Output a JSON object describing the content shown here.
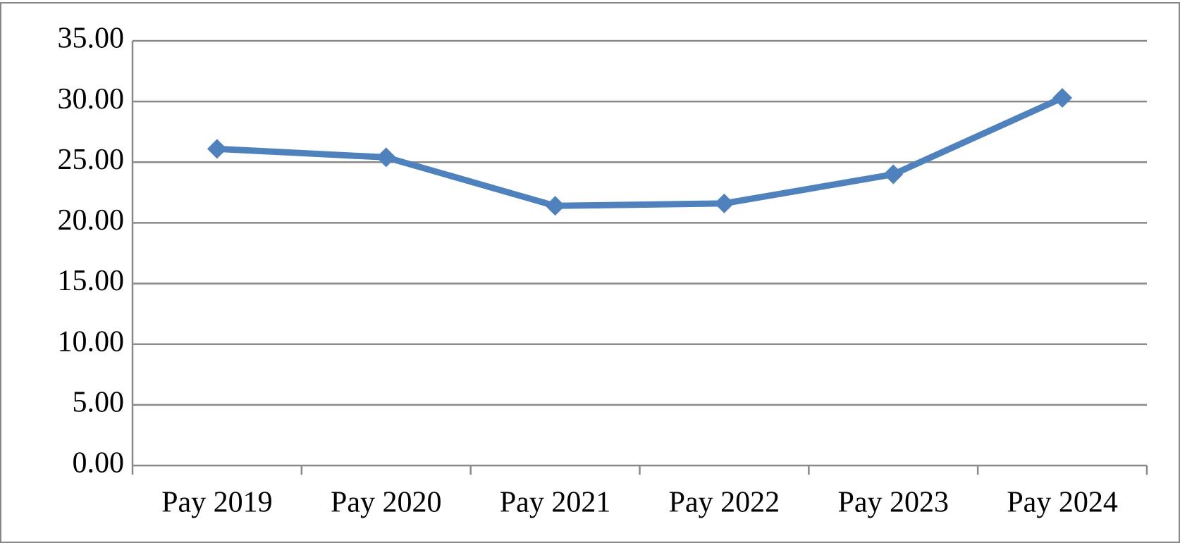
{
  "chart_data": {
    "type": "line",
    "categories": [
      "Pay 2019",
      "Pay 2020",
      "Pay 2021",
      "Pay 2022",
      "Pay 2023",
      "Pay 2024"
    ],
    "series": [
      {
        "color": "#4f81bd",
        "values": [
          26.1,
          25.4,
          21.4,
          21.6,
          24.0,
          30.3
        ]
      }
    ],
    "ylim": [
      0,
      35
    ],
    "yticks": [
      {
        "value": 0,
        "label": "0.00"
      },
      {
        "value": 5,
        "label": "5.00"
      },
      {
        "value": 10,
        "label": "10.00"
      },
      {
        "value": 15,
        "label": "15.00"
      },
      {
        "value": 20,
        "label": "20.00"
      },
      {
        "value": 25,
        "label": "25.00"
      },
      {
        "value": 30,
        "label": "30.00"
      },
      {
        "value": 35,
        "label": "35.00"
      }
    ],
    "grid": true
  }
}
